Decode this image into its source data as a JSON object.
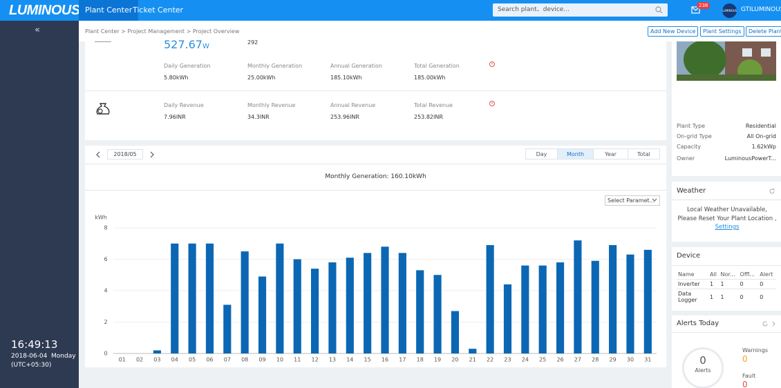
{
  "header": {
    "logo": "LUMINOUS",
    "nav": [
      "Plant Center",
      "Ticket Center"
    ],
    "search_placeholder": "Search plant、device...",
    "notification_count": "238",
    "avatar_text": "LUMINOUS",
    "user": "GTILUMINOUS"
  },
  "sidebar": {
    "collapse": "«",
    "time": "16:49:13",
    "date": "2018-06-04  Monday",
    "timezone": "(UTC+05:30)"
  },
  "breadcrumb": "Plant Center > Project Management > Project Overview",
  "actions": [
    "Add New Device",
    "Plant Settings",
    "Delete Plant"
  ],
  "overview": {
    "power": "527.67",
    "power_unit": "W",
    "second_value": "292",
    "generation": [
      {
        "label": "Daily Generation",
        "value": "5.80kWh"
      },
      {
        "label": "Monthly Generation",
        "value": "25.00kWh"
      },
      {
        "label": "Annual Generation",
        "value": "185.10kWh"
      },
      {
        "label": "Total Generation",
        "value": "185.00kWh"
      }
    ],
    "revenue": [
      {
        "label": "Daily Revenue",
        "value": "7.96INR"
      },
      {
        "label": "Monthly Revenue",
        "value": "34.3INR"
      },
      {
        "label": "Annual Revenue",
        "value": "253.96INR"
      },
      {
        "label": "Total Revenue",
        "value": "253.82INR"
      }
    ]
  },
  "period": {
    "date": "2018/05",
    "tabs": [
      "Day",
      "Month",
      "Year",
      "Total"
    ],
    "active_tab": 1,
    "parameter_select": "Select Paramet..."
  },
  "chart_data": {
    "type": "bar",
    "title": "Monthly Generation: 160.10kWh",
    "y_label": "kWh",
    "categories": [
      "01",
      "02",
      "03",
      "04",
      "05",
      "06",
      "07",
      "08",
      "09",
      "10",
      "11",
      "12",
      "13",
      "14",
      "15",
      "16",
      "17",
      "18",
      "19",
      "20",
      "21",
      "22",
      "23",
      "24",
      "25",
      "26",
      "27",
      "28",
      "29",
      "30",
      "31"
    ],
    "values": [
      0,
      0,
      0.2,
      7.0,
      7.0,
      7.0,
      3.1,
      6.5,
      4.9,
      7.0,
      6.0,
      5.4,
      5.8,
      6.1,
      6.4,
      6.8,
      6.4,
      5.3,
      5.0,
      2.7,
      0.3,
      6.9,
      4.4,
      5.6,
      5.6,
      5.8,
      7.2,
      5.9,
      6.9,
      6.3,
      6.6
    ],
    "color": "#0b67b3",
    "ylim": [
      0,
      8
    ],
    "yticks": [
      0,
      2,
      4,
      6,
      8
    ],
    "grid": true
  },
  "plant_info": [
    {
      "label": "Plant Type",
      "value": "Residential"
    },
    {
      "label": "On-grid Type",
      "value": "All On-grid"
    },
    {
      "label": "Capacity",
      "value": "1.62kWp"
    },
    {
      "label": "Owner",
      "value": "LuminousPowerT..."
    }
  ],
  "weather": {
    "title": "Weather",
    "message": "Local Weather Unavailable, Please Reset Your Plant Location ,",
    "link": "Settings"
  },
  "device": {
    "title": "Device",
    "columns": [
      "Name",
      "All",
      "Nor...",
      "Offl...",
      "Alert"
    ],
    "rows": [
      [
        "Inverter",
        "1",
        "1",
        "0",
        "0"
      ],
      [
        "Data Logger",
        "1",
        "1",
        "0",
        "0"
      ]
    ]
  },
  "alerts": {
    "title": "Alerts Today",
    "count": "0",
    "count_label": "Alerts",
    "warnings_label": "Warnings",
    "warnings": "0",
    "fault_label": "Fault",
    "fault": "0"
  }
}
